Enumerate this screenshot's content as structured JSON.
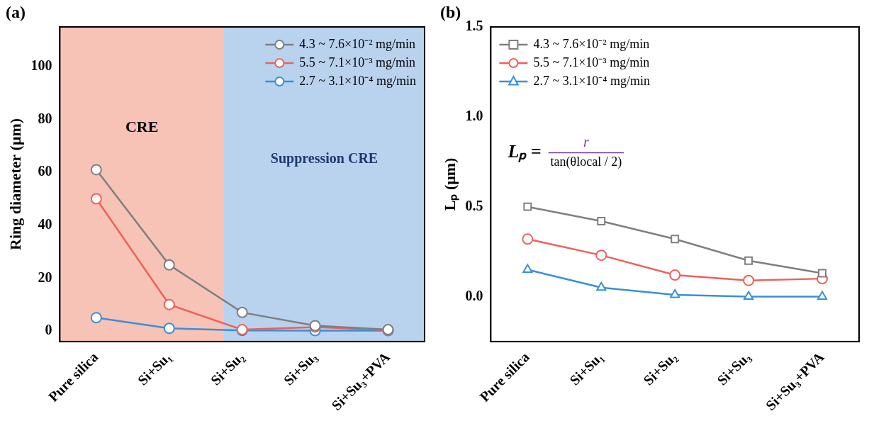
{
  "chart_data": [
    {
      "type": "line",
      "panel_label": "(a)",
      "y_label": "Ring diameter (μm)",
      "categories": [
        "Pure silica",
        "Si+Su₁",
        "Si+Su₂",
        "Si+Su₃",
        "Si+Su₃+PVA"
      ],
      "series": [
        {
          "name": "4.3 ~ 7.6×10⁻² mg/min",
          "color": "#7f7f7f",
          "marker": "circle",
          "values": [
            61,
            25,
            7,
            2,
            0.5
          ]
        },
        {
          "name": "5.5 ~ 7.1×10⁻³ mg/min",
          "color": "#f0605a",
          "marker": "circle",
          "values": [
            50,
            10,
            0.5,
            1.5,
            0.3
          ]
        },
        {
          "name": "2.7 ~ 3.1×10⁻⁴ mg/min",
          "color": "#3a8fd9",
          "marker": "circle",
          "values": [
            5,
            1,
            0.2,
            0.1,
            0.1
          ]
        }
      ],
      "regions": [
        {
          "label": "CRE",
          "color": "#f6c3b6"
        },
        {
          "label": "Suppression CRE",
          "color": "#b9d3ee"
        }
      ],
      "ylim": [
        -4,
        115
      ],
      "yticks": [
        0,
        20,
        40,
        60,
        80,
        100
      ],
      "grid": false,
      "legend": "upper right"
    },
    {
      "type": "line",
      "panel_label": "(b)",
      "y_label": "Lₚ (μm)",
      "categories": [
        "Pure silica",
        "Si+Su₁",
        "Si+Su₂",
        "Si+Su₃",
        "Si+Su₃+PVA"
      ],
      "series": [
        {
          "name": "4.3 ~ 7.6×10⁻² mg/min",
          "color": "#7f7f7f",
          "marker": "square",
          "values": [
            0.5,
            0.42,
            0.32,
            0.2,
            0.13
          ]
        },
        {
          "name": "5.5 ~ 7.1×10⁻³ mg/min",
          "color": "#f0605a",
          "marker": "circle",
          "values": [
            0.32,
            0.23,
            0.12,
            0.09,
            0.1
          ]
        },
        {
          "name": "2.7 ~ 3.1×10⁻⁴ mg/min",
          "color": "#3a8fd9",
          "marker": "triangle",
          "values": [
            0.15,
            0.05,
            0.01,
            0.0,
            0.0
          ]
        }
      ],
      "formula": {
        "lhs": "Lₚ =",
        "numerator": "r",
        "denominator": "tan(θlocal / 2)"
      },
      "ylim": [
        -0.25,
        1.5
      ],
      "yticks": [
        {
          "value": 0,
          "label": "0.0"
        },
        {
          "value": 0.5,
          "label": "0.5"
        },
        {
          "value": 1,
          "label": "1.0"
        },
        {
          "value": 1.5,
          "label": "1.5"
        }
      ],
      "grid": false,
      "legend": "upper left"
    }
  ]
}
